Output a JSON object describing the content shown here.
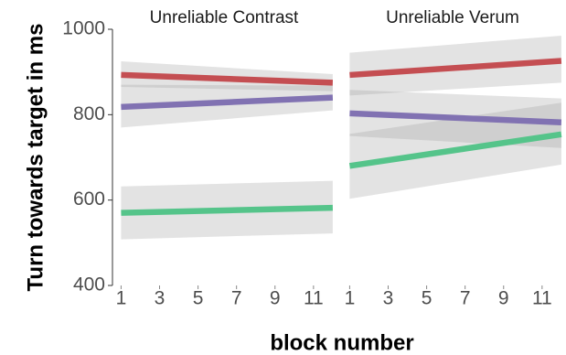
{
  "chart_data": {
    "type": "line",
    "xlabel": "block number",
    "ylabel": "Turn towards target in ms",
    "ylim": [
      400,
      1000
    ],
    "xlim": [
      0.6,
      12.1
    ],
    "y_ticks": [
      "400",
      "600",
      "800",
      "1000"
    ],
    "x_ticks": [
      "1",
      "3",
      "5",
      "7",
      "9",
      "11"
    ],
    "grid": false,
    "legend": "none",
    "panels": [
      {
        "title": "Unreliable Contrast",
        "x_range": [
          1,
          12
        ],
        "series": [
          {
            "color": "#c44e52",
            "values": [
              893,
              875
            ],
            "band": [
              [
                865,
                925
              ],
              [
                855,
                895
              ]
            ]
          },
          {
            "color": "#8172b2",
            "values": [
              818,
              840
            ],
            "band": [
              [
                770,
                870
              ],
              [
                810,
                868
              ]
            ]
          },
          {
            "color": "#55c48a",
            "values": [
              570,
              582
            ],
            "band": [
              [
                508,
                632
              ],
              [
                522,
                645
              ]
            ]
          }
        ]
      },
      {
        "title": "Unreliable Verum",
        "x_range": [
          1,
          12
        ],
        "series": [
          {
            "color": "#c44e52",
            "values": [
              893,
              926
            ],
            "band": [
              [
                845,
                945
              ],
              [
                875,
                985
              ]
            ]
          },
          {
            "color": "#8172b2",
            "values": [
              803,
              782
            ],
            "band": [
              [
                750,
                858
              ],
              [
                722,
                838
              ]
            ]
          },
          {
            "color": "#55c48a",
            "values": [
              680,
              754
            ],
            "band": [
              [
                603,
                755
              ],
              [
                683,
                828
              ]
            ]
          }
        ]
      }
    ]
  }
}
